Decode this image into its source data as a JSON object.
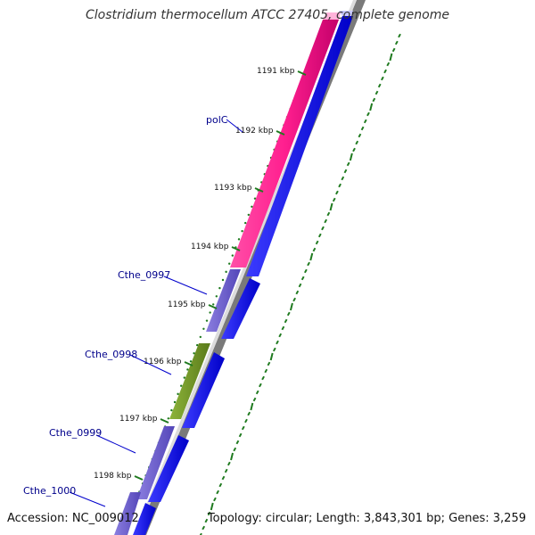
{
  "title": "Clostridium thermocellum ATCC 27405, complete genome",
  "footer": {
    "accession": "Accession: NC_009012",
    "topology": "Topology: circular; Length: 3,843,301 bp; Genes: 3,259"
  },
  "colors": {
    "pink_feature": "#ff1f8f",
    "purple_feature": "#6a5acd",
    "green_feature": "#6b8e23",
    "blue_feature": "#0000ee",
    "backbone": "#888888",
    "tick_green": "#1f7a1f",
    "label_blue": "#00008b"
  },
  "ticks": [
    {
      "label": "1191 kbp",
      "pos": 1191
    },
    {
      "label": "1192 kbp",
      "pos": 1192
    },
    {
      "label": "1193 kbp",
      "pos": 1193
    },
    {
      "label": "1194 kbp",
      "pos": 1194
    },
    {
      "label": "1195 kbp",
      "pos": 1195
    },
    {
      "label": "1196 kbp",
      "pos": 1196
    },
    {
      "label": "1197 kbp",
      "pos": 1197
    },
    {
      "label": "1198 kbp",
      "pos": 1198
    }
  ],
  "genes": [
    {
      "label": "polC",
      "icon": "pink-feature"
    },
    {
      "label": "Cthe_0997",
      "icon": "purple-feature"
    },
    {
      "label": "Cthe_0998",
      "icon": "green-feature"
    },
    {
      "label": "Cthe_0999",
      "icon": "purple-feature"
    },
    {
      "label": "Cthe_1000",
      "icon": "purple-feature"
    }
  ]
}
